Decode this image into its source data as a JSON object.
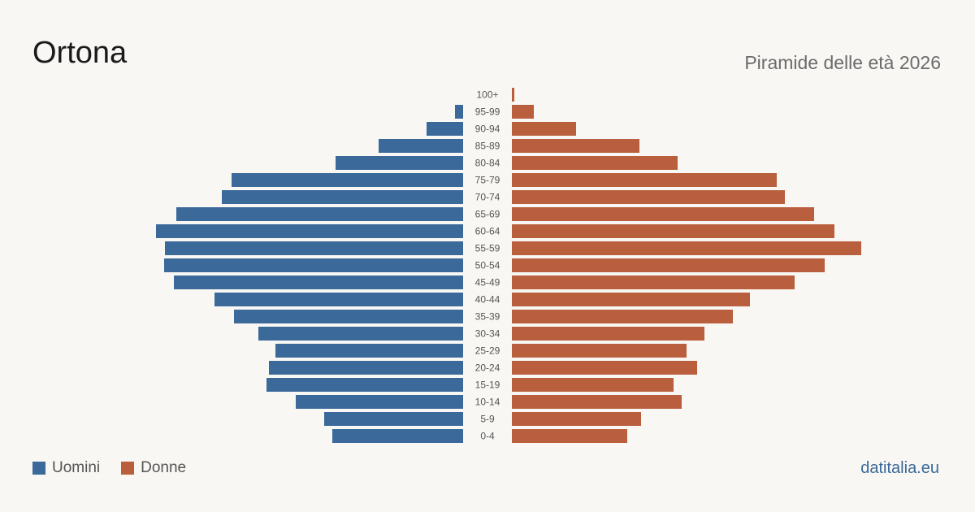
{
  "header": {
    "title": "Ortona",
    "subtitle": "Piramide delle età 2026"
  },
  "legend": {
    "men_label": "Uomini",
    "women_label": "Donne"
  },
  "footer": {
    "source": "datitalia.eu"
  },
  "colors": {
    "men": "#3b6a9a",
    "women": "#b95f3d",
    "background": "#f9f7f3"
  },
  "chart_data": {
    "type": "bar",
    "orientation": "horizontal-pyramid",
    "categories": [
      "100+",
      "95-99",
      "90-94",
      "85-89",
      "80-84",
      "75-79",
      "70-74",
      "65-69",
      "60-64",
      "55-59",
      "50-54",
      "45-49",
      "40-44",
      "35-39",
      "30-34",
      "25-29",
      "20-24",
      "15-19",
      "10-14",
      "5-9",
      "0-4"
    ],
    "series": [
      {
        "name": "Uomini",
        "values": [
          0,
          10,
          45,
          104,
          157,
          285,
          297,
          353,
          378,
          367,
          368,
          356,
          306,
          282,
          252,
          231,
          239,
          242,
          206,
          171,
          161
        ]
      },
      {
        "name": "Donne",
        "values": [
          3,
          27,
          79,
          157,
          204,
          326,
          336,
          372,
          397,
          430,
          385,
          348,
          293,
          272,
          237,
          215,
          228,
          199,
          209,
          159,
          142
        ]
      }
    ]
  }
}
